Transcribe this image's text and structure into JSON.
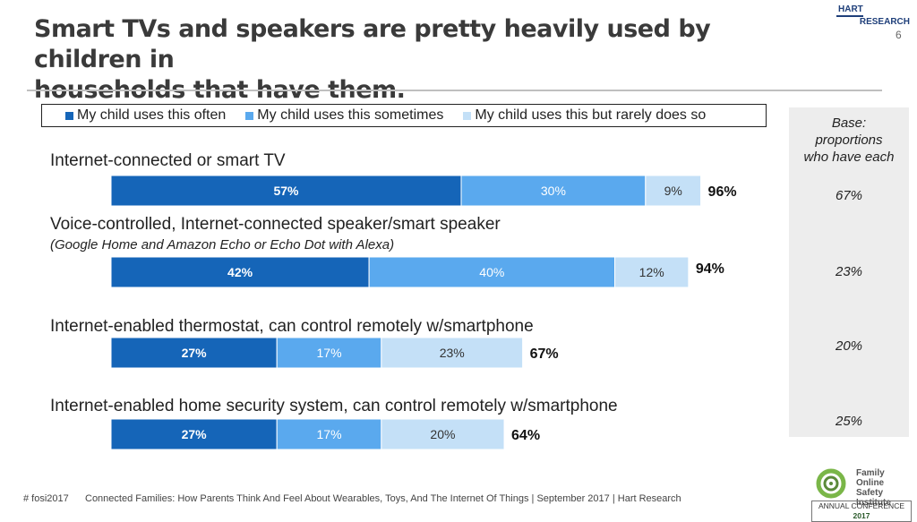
{
  "header": {
    "title_line1": "Smart TVs and speakers are pretty heavily used by children in",
    "title_line2": "households that have them.",
    "logo_line1": "HART",
    "logo_line2": "RESEARCH",
    "page_number": "6"
  },
  "legend": {
    "items": [
      {
        "label": "My child uses this often",
        "color": "#1565b8"
      },
      {
        "label": "My child uses this sometimes",
        "color": "#5aa9ee"
      },
      {
        "label": "My child uses this but rarely does so",
        "color": "#c4e0f7"
      }
    ]
  },
  "base_panel": {
    "title_line1": "Base:",
    "title_line2": "proportions",
    "title_line3": "who have each",
    "values": [
      "67%",
      "23%",
      "20%",
      "25%"
    ]
  },
  "rows": [
    {
      "label": "Internet-connected or smart TV",
      "sublabel": ""
    },
    {
      "label": "Voice-controlled, Internet-connected speaker/smart speaker",
      "sublabel": "(Google Home and Amazon Echo or Echo Dot with Alexa)"
    },
    {
      "label": "Internet-enabled thermostat, can control remotely w/smartphone",
      "sublabel": ""
    },
    {
      "label": "Internet-enabled home security system, can control remotely w/smartphone",
      "sublabel": ""
    }
  ],
  "chart_data": {
    "type": "bar",
    "orientation": "horizontal",
    "stacked": true,
    "categories": [
      "Internet-connected or smart TV",
      "Voice-controlled, Internet-connected speaker/smart speaker",
      "Internet-enabled thermostat, can control remotely w/smartphone",
      "Internet-enabled home security system, can control remotely w/smartphone"
    ],
    "series": [
      {
        "name": "My child uses this often",
        "values": [
          57,
          42,
          27,
          27
        ],
        "labels": [
          "57%",
          "42%",
          "27%",
          "27%"
        ],
        "color": "#1565b8",
        "label_color": "#ffffff"
      },
      {
        "name": "My child uses this sometimes",
        "values": [
          30,
          40,
          17,
          17
        ],
        "labels": [
          "30%",
          "40%",
          "17%",
          "17%"
        ],
        "color": "#5aa9ee",
        "label_color": "#ffffff"
      },
      {
        "name": "My child uses this but rarely does so",
        "values": [
          9,
          12,
          23,
          20
        ],
        "labels": [
          "9%",
          "12%",
          "23%",
          "20%"
        ],
        "color": "#c4e0f7",
        "label_color": "#333333"
      }
    ],
    "totals": [
      "96%",
      "94%",
      "67%",
      "64%"
    ],
    "xlim": [
      0,
      100
    ],
    "legend_position": "top",
    "grid": false
  },
  "footer": {
    "hashtag": "# fosi2017",
    "text": "Connected Families: How Parents Think And Feel About Wearables, Toys, And The Internet Of Things | September 2017 | Hart Research",
    "org_line1": "Family",
    "org_line2": "Online Safety",
    "org_line3": "Institute",
    "annual_prefix": "ANNUAL CONFERENCE",
    "annual_year": "2017"
  }
}
